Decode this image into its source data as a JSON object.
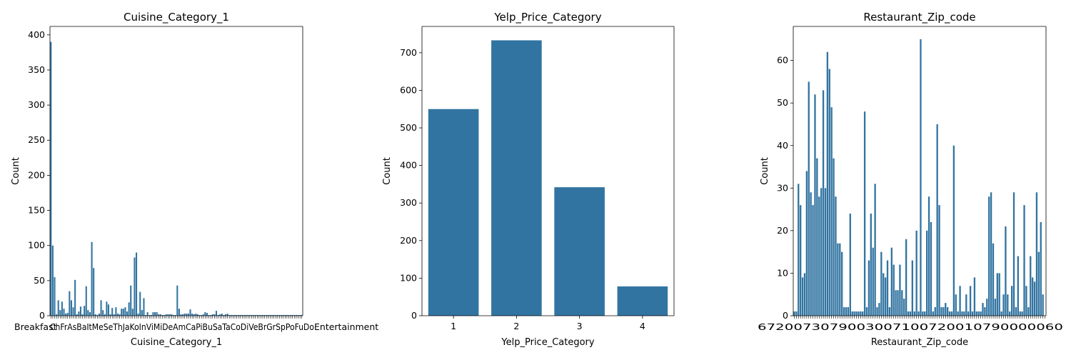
{
  "colors": {
    "bar": "#3274a1",
    "axis": "#000000",
    "background": "#ffffff"
  },
  "chart_data": [
    {
      "type": "bar",
      "title": "Cuisine_Category_1",
      "xlabel": "Cuisine_Category_1",
      "ylabel": "Count",
      "ylim": [
        0,
        412
      ],
      "yticks": [
        0,
        50,
        100,
        150,
        200,
        250,
        300,
        350,
        400
      ],
      "legible_tick_text": "Breakfast ... Entertainment (overlapping, ~120 categories)",
      "values": [
        390,
        100,
        55,
        2,
        22,
        8,
        20,
        10,
        3,
        4,
        35,
        22,
        12,
        51,
        2,
        6,
        13,
        2,
        14,
        42,
        8,
        5,
        105,
        68,
        2,
        1,
        3,
        22,
        8,
        2,
        20,
        16,
        2,
        11,
        2,
        12,
        3,
        2,
        10,
        10,
        12,
        6,
        19,
        43,
        10,
        83,
        90,
        3,
        34,
        8,
        25,
        1,
        5,
        1,
        1,
        5,
        5,
        5,
        2,
        2,
        1,
        1,
        2,
        2,
        2,
        2,
        1,
        1,
        43,
        10,
        2,
        2,
        3,
        3,
        3,
        9,
        3,
        2,
        3,
        2,
        1,
        1,
        2,
        5,
        4,
        1,
        1,
        2,
        2,
        7,
        1,
        2,
        3,
        1,
        2,
        3,
        1,
        1,
        1,
        1,
        1,
        1,
        1,
        1,
        1,
        1,
        1,
        1,
        1,
        1,
        1,
        1,
        1,
        1,
        1,
        1,
        1,
        1,
        1,
        1,
        1,
        1,
        1,
        1,
        1,
        1,
        1,
        1,
        1,
        1,
        1,
        1,
        1,
        1,
        1,
        1
      ]
    },
    {
      "type": "bar",
      "title": "Yelp_Price_Category",
      "xlabel": "Yelp_Price_Category",
      "ylabel": "Count",
      "categories": [
        "1",
        "2",
        "3",
        "4"
      ],
      "values": [
        550,
        733,
        342,
        78
      ],
      "ylim": [
        0,
        770
      ],
      "yticks": [
        0,
        100,
        200,
        300,
        400,
        500,
        600,
        700
      ]
    },
    {
      "type": "bar",
      "title": "Restaurant_Zip_code",
      "xlabel": "Restaurant_Zip_code",
      "ylabel": "Count",
      "ylim": [
        0,
        68
      ],
      "yticks": [
        0,
        10,
        20,
        30,
        40,
        50,
        60
      ],
      "legible_tick_text": "6... (overlapping zip codes, ~140 categories)",
      "values": [
        1,
        1,
        31,
        26,
        9,
        10,
        34,
        55,
        29,
        26,
        52,
        37,
        28,
        30,
        53,
        30,
        62,
        58,
        49,
        37,
        28,
        17,
        17,
        15,
        2,
        2,
        2,
        24,
        1,
        1,
        1,
        1,
        1,
        1,
        48,
        2,
        13,
        24,
        16,
        31,
        2,
        3,
        15,
        10,
        9,
        13,
        2,
        16,
        12,
        6,
        6,
        12,
        6,
        4,
        18,
        1,
        1,
        13,
        1,
        20,
        1,
        65,
        1,
        1,
        20,
        28,
        22,
        1,
        2,
        45,
        26,
        2,
        2,
        3,
        2,
        1,
        1,
        40,
        5,
        1,
        7,
        1,
        1,
        5,
        1,
        7,
        1,
        9,
        1,
        1,
        1,
        3,
        2,
        4,
        28,
        29,
        17,
        4,
        10,
        10,
        1,
        5,
        21,
        5,
        1,
        7,
        29,
        2,
        14,
        1,
        1,
        26,
        7,
        2,
        14,
        9,
        8,
        29,
        15,
        22,
        5,
        0
      ]
    }
  ]
}
